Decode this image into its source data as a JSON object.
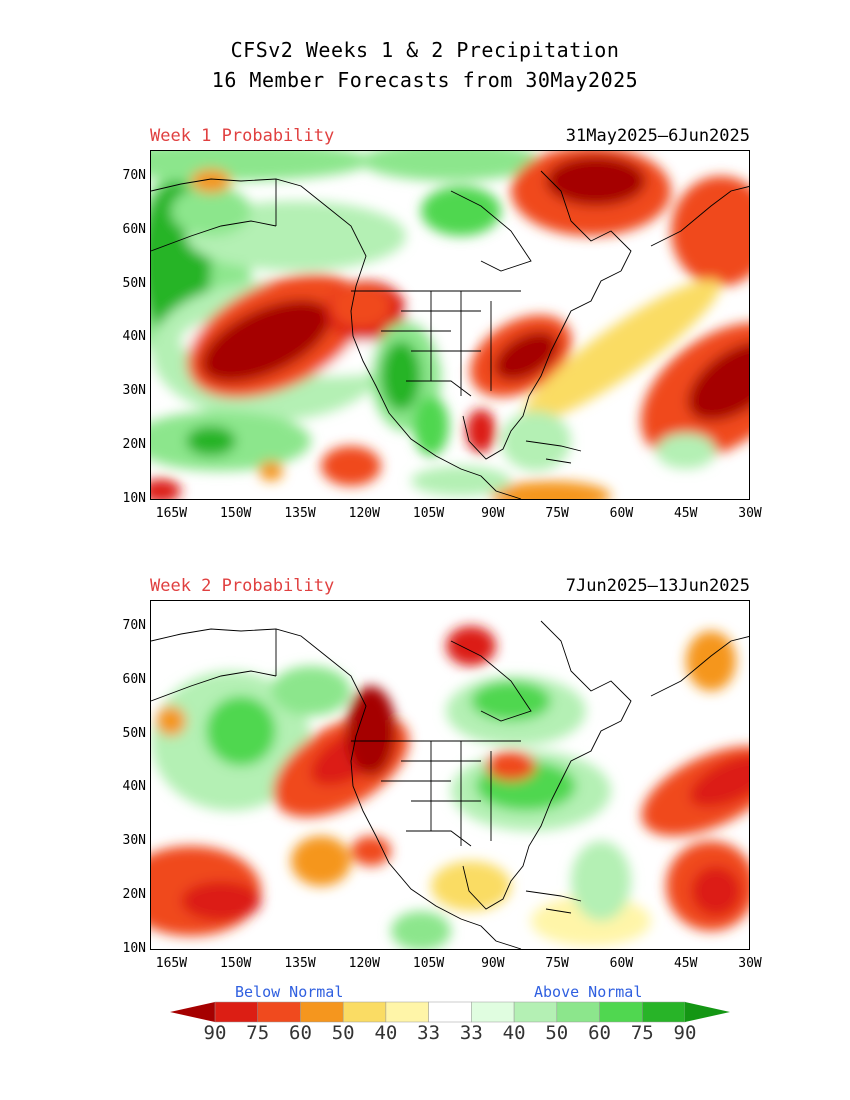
{
  "header": {
    "title_line1": "CFSv2 Weeks 1 & 2 Precipitation",
    "title_line2": "16 Member Forecasts from 30May2025"
  },
  "panels": [
    {
      "label": "Week 1 Probability",
      "dates": "31May2025—6Jun2025"
    },
    {
      "label": "Week 2 Probability",
      "dates": "7Jun2025—13Jun2025"
    }
  ],
  "axes": {
    "lat_ticks": [
      "70N",
      "60N",
      "50N",
      "40N",
      "30N",
      "20N",
      "10N"
    ],
    "lat_values": [
      70,
      60,
      50,
      40,
      30,
      20,
      10
    ],
    "lon_ticks": [
      "165W",
      "150W",
      "135W",
      "120W",
      "105W",
      "90W",
      "75W",
      "60W",
      "45W",
      "30W"
    ],
    "lon_values": [
      -165,
      -150,
      -135,
      -120,
      -105,
      -90,
      -75,
      -60,
      -45,
      -30
    ],
    "lon_range": [
      -170,
      -30
    ],
    "lat_range": [
      10,
      75
    ]
  },
  "legend": {
    "below_label": "Below Normal",
    "above_label": "Above Normal",
    "labels": [
      "90",
      "75",
      "60",
      "50",
      "40",
      "33",
      "33",
      "40",
      "50",
      "60",
      "75",
      "90"
    ],
    "colors": [
      "#a50000",
      "#dc1e14",
      "#f04a1e",
      "#f5961e",
      "#fadc64",
      "#fff5a8",
      "#ffffff",
      "#e0fde0",
      "#b4f0b4",
      "#8ce68c",
      "#50d750",
      "#28b428",
      "#149614"
    ]
  }
}
